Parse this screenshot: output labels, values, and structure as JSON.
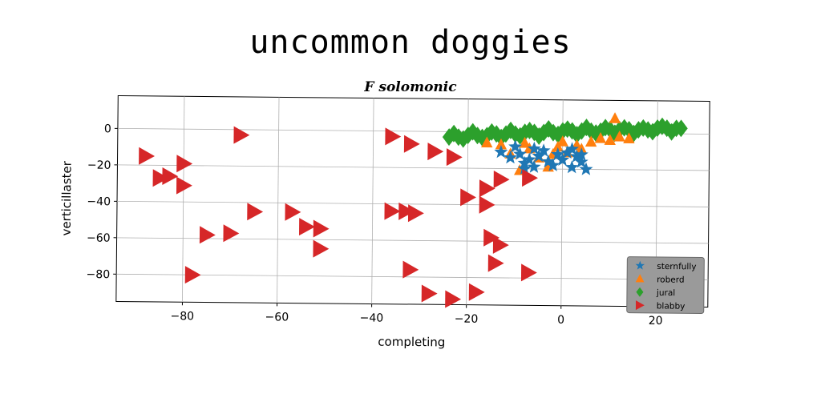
{
  "chart_data": {
    "type": "scatter",
    "title": "uncommon doggies",
    "subtitle": "F solomonic",
    "xlabel": "completing",
    "ylabel": "verticillaster",
    "xlim": [
      -94,
      31
    ],
    "ylim": [
      -95,
      18
    ],
    "xticks": [
      -80,
      -60,
      -40,
      -20,
      0,
      20
    ],
    "yticks": [
      0,
      -20,
      -40,
      -60,
      -80
    ],
    "grid": true,
    "legend_position": "lower-right",
    "series": [
      {
        "name": "sternfully",
        "marker": "star",
        "color": "#1f77b4",
        "points": [
          [
            -13,
            -11
          ],
          [
            -11,
            -14
          ],
          [
            -9,
            -12
          ],
          [
            -8,
            -17
          ],
          [
            -7,
            -15
          ],
          [
            -6,
            -19
          ],
          [
            -5,
            -13
          ],
          [
            -4,
            -10
          ],
          [
            -3,
            -16
          ],
          [
            -2,
            -18
          ],
          [
            -1,
            -12
          ],
          [
            0,
            -15
          ],
          [
            1,
            -11
          ],
          [
            2,
            -19
          ],
          [
            3,
            -13
          ],
          [
            4,
            -16
          ],
          [
            5,
            -20
          ],
          [
            -10,
            -8
          ],
          [
            -6,
            -9
          ],
          [
            2,
            -9
          ],
          [
            4,
            -12
          ],
          [
            -8,
            -20
          ]
        ]
      },
      {
        "name": "roberd",
        "marker": "triangle-up",
        "color": "#ff7f0e",
        "points": [
          [
            -16,
            -6
          ],
          [
            -11,
            -12
          ],
          [
            -9,
            -21
          ],
          [
            -7,
            -9
          ],
          [
            -5,
            -14
          ],
          [
            -3,
            -19
          ],
          [
            -2,
            -12
          ],
          [
            -1,
            -8
          ],
          [
            1,
            -11
          ],
          [
            3,
            -7
          ],
          [
            4,
            -9
          ],
          [
            6,
            -5
          ],
          [
            8,
            -3
          ],
          [
            10,
            -4
          ],
          [
            11,
            8
          ],
          [
            12,
            -2
          ],
          [
            14,
            -3
          ],
          [
            -13,
            -7
          ],
          [
            -8,
            -6
          ],
          [
            0,
            -5
          ]
        ]
      },
      {
        "name": "jural",
        "marker": "diamond",
        "color": "#2ca02c",
        "points": [
          [
            -24,
            -3
          ],
          [
            -22,
            -3
          ],
          [
            -20,
            -2
          ],
          [
            -18,
            -2
          ],
          [
            -16,
            -2
          ],
          [
            -14,
            -1
          ],
          [
            -12,
            -1
          ],
          [
            -10,
            -1
          ],
          [
            -8,
            0
          ],
          [
            -6,
            0
          ],
          [
            -4,
            0
          ],
          [
            -2,
            0
          ],
          [
            0,
            1
          ],
          [
            2,
            1
          ],
          [
            4,
            1
          ],
          [
            6,
            1
          ],
          [
            8,
            1
          ],
          [
            10,
            2
          ],
          [
            12,
            2
          ],
          [
            14,
            2
          ],
          [
            16,
            2
          ],
          [
            18,
            2
          ],
          [
            20,
            3
          ],
          [
            22,
            3
          ],
          [
            24,
            3
          ],
          [
            25,
            3
          ],
          [
            -23,
            -1
          ],
          [
            -19,
            0
          ],
          [
            -15,
            0
          ],
          [
            -11,
            1
          ],
          [
            -7,
            1
          ],
          [
            -3,
            2
          ],
          [
            1,
            2
          ],
          [
            5,
            3
          ],
          [
            9,
            3
          ],
          [
            13,
            3
          ],
          [
            17,
            3
          ],
          [
            21,
            4
          ],
          [
            -21,
            -4
          ],
          [
            -17,
            -3
          ],
          [
            -13,
            -3
          ],
          [
            -9,
            -2
          ],
          [
            -5,
            -2
          ],
          [
            -1,
            -1
          ],
          [
            3,
            -1
          ],
          [
            7,
            0
          ],
          [
            11,
            0
          ],
          [
            15,
            0
          ],
          [
            19,
            1
          ],
          [
            23,
            1
          ]
        ]
      },
      {
        "name": "blabby",
        "marker": "triangle-right",
        "color": "#d62728",
        "points": [
          [
            -88,
            -15
          ],
          [
            -80,
            -19
          ],
          [
            -85,
            -27
          ],
          [
            -83,
            -26
          ],
          [
            -80,
            -31
          ],
          [
            -68,
            -3
          ],
          [
            -36,
            -3
          ],
          [
            -32,
            -7
          ],
          [
            -27,
            -11
          ],
          [
            -23,
            -14
          ],
          [
            -20,
            -36
          ],
          [
            -16,
            -31
          ],
          [
            -16,
            -40
          ],
          [
            -13,
            -26
          ],
          [
            -7,
            -25
          ],
          [
            -36,
            -44
          ],
          [
            -33,
            -44
          ],
          [
            -31,
            -45
          ],
          [
            -57,
            -45
          ],
          [
            -65,
            -45
          ],
          [
            -75,
            -58
          ],
          [
            -70,
            -57
          ],
          [
            -54,
            -53
          ],
          [
            -51,
            -54
          ],
          [
            -51,
            -65
          ],
          [
            -15,
            -58
          ],
          [
            -13,
            -62
          ],
          [
            -14,
            -72
          ],
          [
            -7,
            -77
          ],
          [
            -32,
            -76
          ],
          [
            -28,
            -89
          ],
          [
            -23,
            -92
          ],
          [
            -18,
            -88
          ],
          [
            -78,
            -80
          ]
        ]
      }
    ]
  }
}
